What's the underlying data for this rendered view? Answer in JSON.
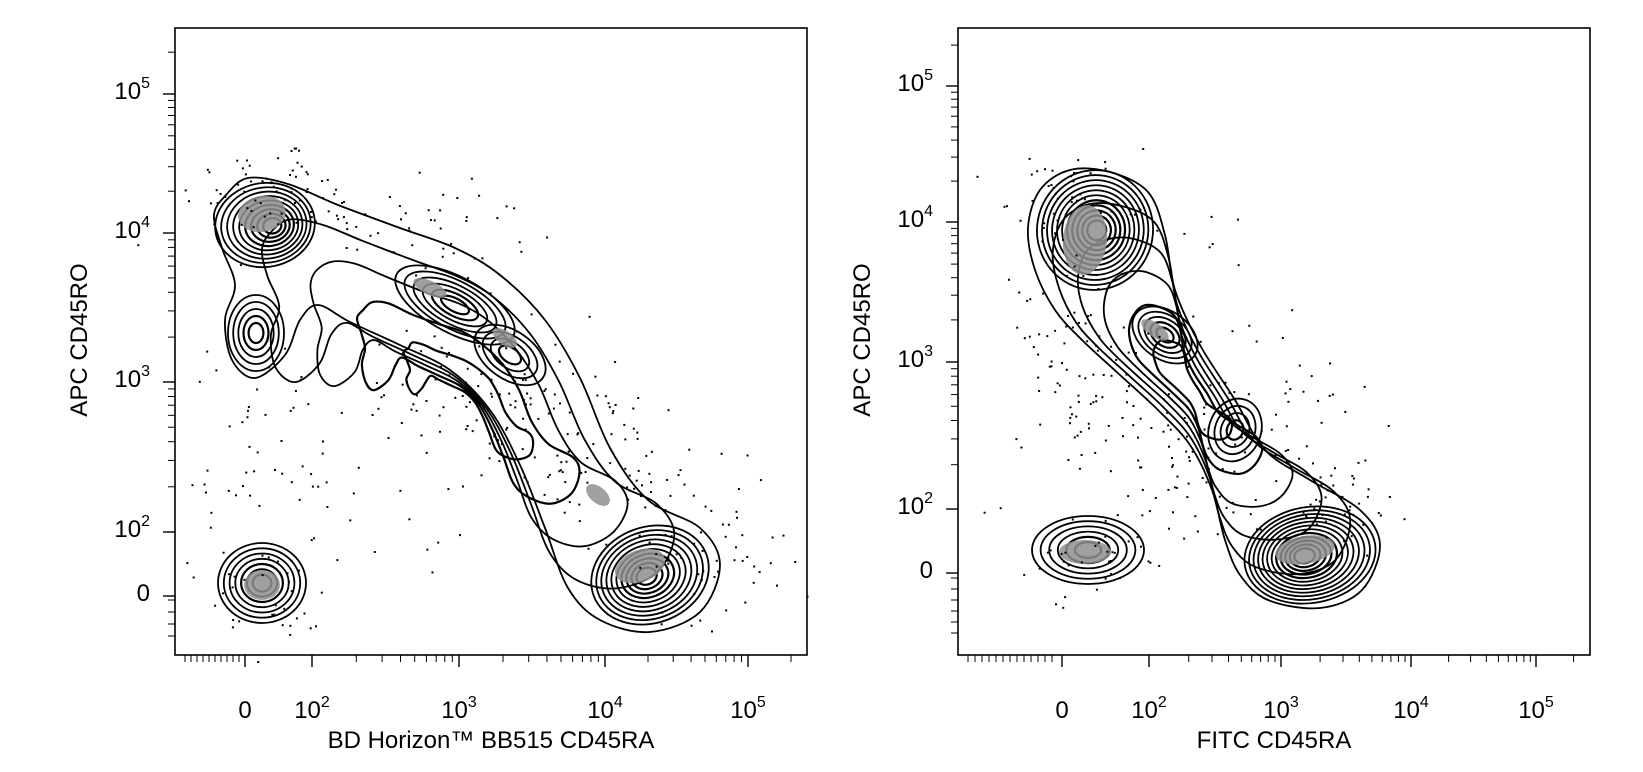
{
  "chart_data": [
    {
      "type": "contour",
      "xlabel": "BD Horizon™ BB515 CD45RA",
      "ylabel": "APC CD45RO",
      "x_scale": "biexponential",
      "y_scale": "biexponential",
      "x_ticks": [
        {
          "label": "0",
          "base": "0",
          "exp": ""
        },
        {
          "label": "10^2",
          "base": "10",
          "exp": "2"
        },
        {
          "label": "10^3",
          "base": "10",
          "exp": "3"
        },
        {
          "label": "10^4",
          "base": "10",
          "exp": "4"
        },
        {
          "label": "10^5",
          "base": "10",
          "exp": "5"
        }
      ],
      "y_ticks": [
        {
          "label": "0",
          "base": "0",
          "exp": ""
        },
        {
          "label": "10^2",
          "base": "10",
          "exp": "2"
        },
        {
          "label": "10^3",
          "base": "10",
          "exp": "3"
        },
        {
          "label": "10^4",
          "base": "10",
          "exp": "4"
        },
        {
          "label": "10^5",
          "base": "10",
          "exp": "5"
        }
      ],
      "populations": [
        {
          "x": 25,
          "y": 10000,
          "density": "high"
        },
        {
          "x": 15,
          "y": 1800,
          "density": "medium"
        },
        {
          "x": 700,
          "y": 3200,
          "density": "medium"
        },
        {
          "x": 2000,
          "y": 1300,
          "density": "medium"
        },
        {
          "x": 20000,
          "y": 20,
          "density": "high"
        },
        {
          "x": 15,
          "y": 15,
          "density": "high"
        }
      ],
      "grid": false,
      "legend": "none"
    },
    {
      "type": "contour",
      "xlabel": "FITC CD45RA",
      "ylabel": "APC CD45RO",
      "x_scale": "biexponential",
      "y_scale": "biexponential",
      "x_ticks": [
        {
          "label": "0",
          "base": "0",
          "exp": ""
        },
        {
          "label": "10^2",
          "base": "10",
          "exp": "2"
        },
        {
          "label": "10^3",
          "base": "10",
          "exp": "3"
        },
        {
          "label": "10^4",
          "base": "10",
          "exp": "4"
        },
        {
          "label": "10^5",
          "base": "10",
          "exp": "5"
        }
      ],
      "y_ticks": [
        {
          "label": "0",
          "base": "0",
          "exp": ""
        },
        {
          "label": "10^2",
          "base": "10",
          "exp": "2"
        },
        {
          "label": "10^3",
          "base": "10",
          "exp": "3"
        },
        {
          "label": "10^4",
          "base": "10",
          "exp": "4"
        },
        {
          "label": "10^5",
          "base": "10",
          "exp": "5"
        }
      ],
      "populations": [
        {
          "x": 40,
          "y": 8000,
          "density": "high"
        },
        {
          "x": 300,
          "y": 1200,
          "density": "medium"
        },
        {
          "x": 1300,
          "y": 30,
          "density": "high"
        },
        {
          "x": 30,
          "y": 15,
          "density": "medium"
        }
      ],
      "grid": false,
      "legend": "none"
    }
  ]
}
